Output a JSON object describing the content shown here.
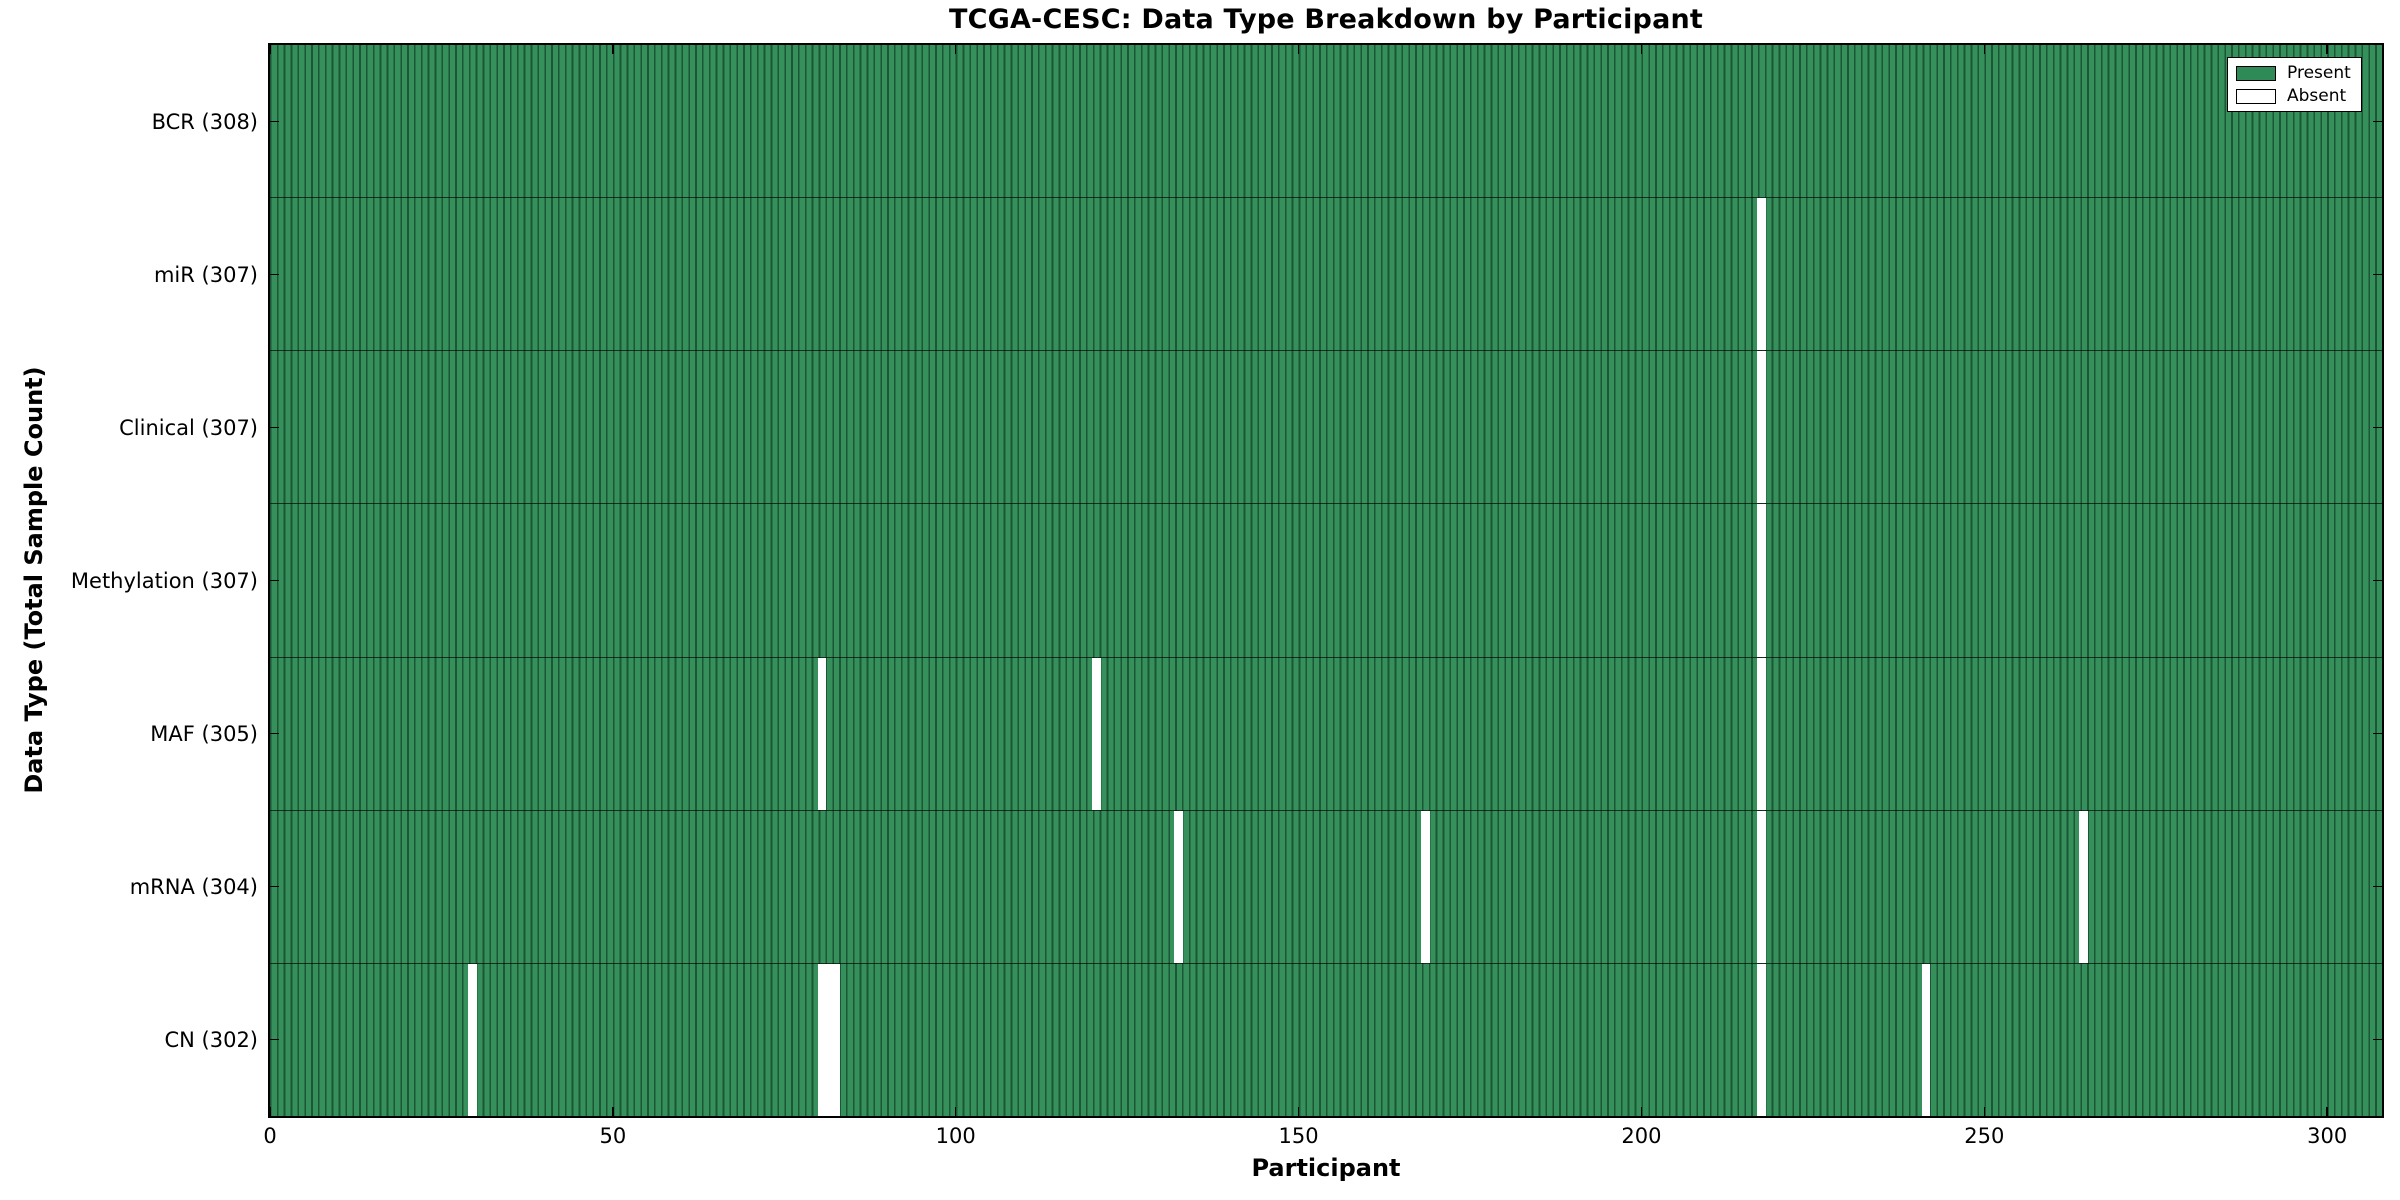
{
  "chart_data": {
    "type": "heatmap",
    "title": "TCGA-CESC: Data Type Breakdown by Participant",
    "xlabel": "Participant",
    "ylabel": "Data Type (Total Sample Count)",
    "x_ticks": [
      0,
      50,
      100,
      150,
      200,
      250,
      300
    ],
    "x_range": [
      0,
      308
    ],
    "n_participants": 308,
    "grid": false,
    "legend_position": "upper right",
    "legend": [
      {
        "label": "Present",
        "color": "#2e8b57"
      },
      {
        "label": "Absent",
        "color": "#ffffff"
      }
    ],
    "colors": {
      "present_fill": "#35905c",
      "present_base": "#2e8b57",
      "bar_edge": "#1c5634",
      "absent": "#ffffff",
      "axis_border": "#000000"
    },
    "rows": [
      {
        "label": "BCR (308)",
        "data_type": "BCR",
        "total_samples": 308,
        "absent_participants": []
      },
      {
        "label": "miR (307)",
        "data_type": "miR",
        "total_samples": 307,
        "absent_participants": [
          217
        ]
      },
      {
        "label": "Clinical (307)",
        "data_type": "Clinical",
        "total_samples": 307,
        "absent_participants": [
          217
        ]
      },
      {
        "label": "Methylation (307)",
        "data_type": "Methylation",
        "total_samples": 307,
        "absent_participants": [
          217
        ]
      },
      {
        "label": "MAF (305)",
        "data_type": "MAF",
        "total_samples": 305,
        "absent_participants": [
          80,
          120,
          217
        ]
      },
      {
        "label": "mRNA (304)",
        "data_type": "mRNA",
        "total_samples": 304,
        "absent_participants": [
          132,
          168,
          217,
          264
        ]
      },
      {
        "label": "CN (302)",
        "data_type": "CN",
        "total_samples": 302,
        "absent_participants": [
          29,
          80,
          81,
          82,
          217,
          241
        ]
      }
    ]
  }
}
